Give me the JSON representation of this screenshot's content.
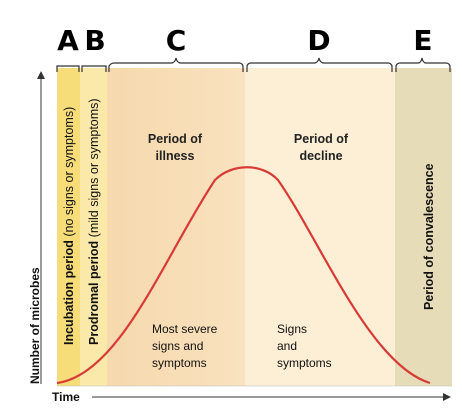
{
  "colors": {
    "incubation": "#f6dd7a",
    "prodromal": "#fbe9a9",
    "illness": "#f8ddb5",
    "decline": "#fcefd6",
    "convalescence": "#e6dcb8",
    "curve": "#d83a36",
    "axis": "#333333"
  },
  "phase_letters": [
    "A",
    "B",
    "C",
    "D",
    "E"
  ],
  "incubation": {
    "label_bold": "Incubation period",
    "label_note": " (no signs or symptoms)"
  },
  "prodromal": {
    "label_bold": "Prodromal period",
    "label_note": " (mild signs or symptoms)"
  },
  "illness": {
    "title_line1": "Period of",
    "title_line2": "illness",
    "note_line1": "Most severe",
    "note_line2": "signs and",
    "note_line3": "symptoms"
  },
  "decline": {
    "title_line1": "Period of",
    "title_line2": "decline",
    "note_line1": "Signs",
    "note_line2": "and",
    "note_line3": "symptoms"
  },
  "convalescence": {
    "label": "Period of convalescence"
  },
  "axes": {
    "y_label": "Number of microbes",
    "x_label": "Time"
  }
}
